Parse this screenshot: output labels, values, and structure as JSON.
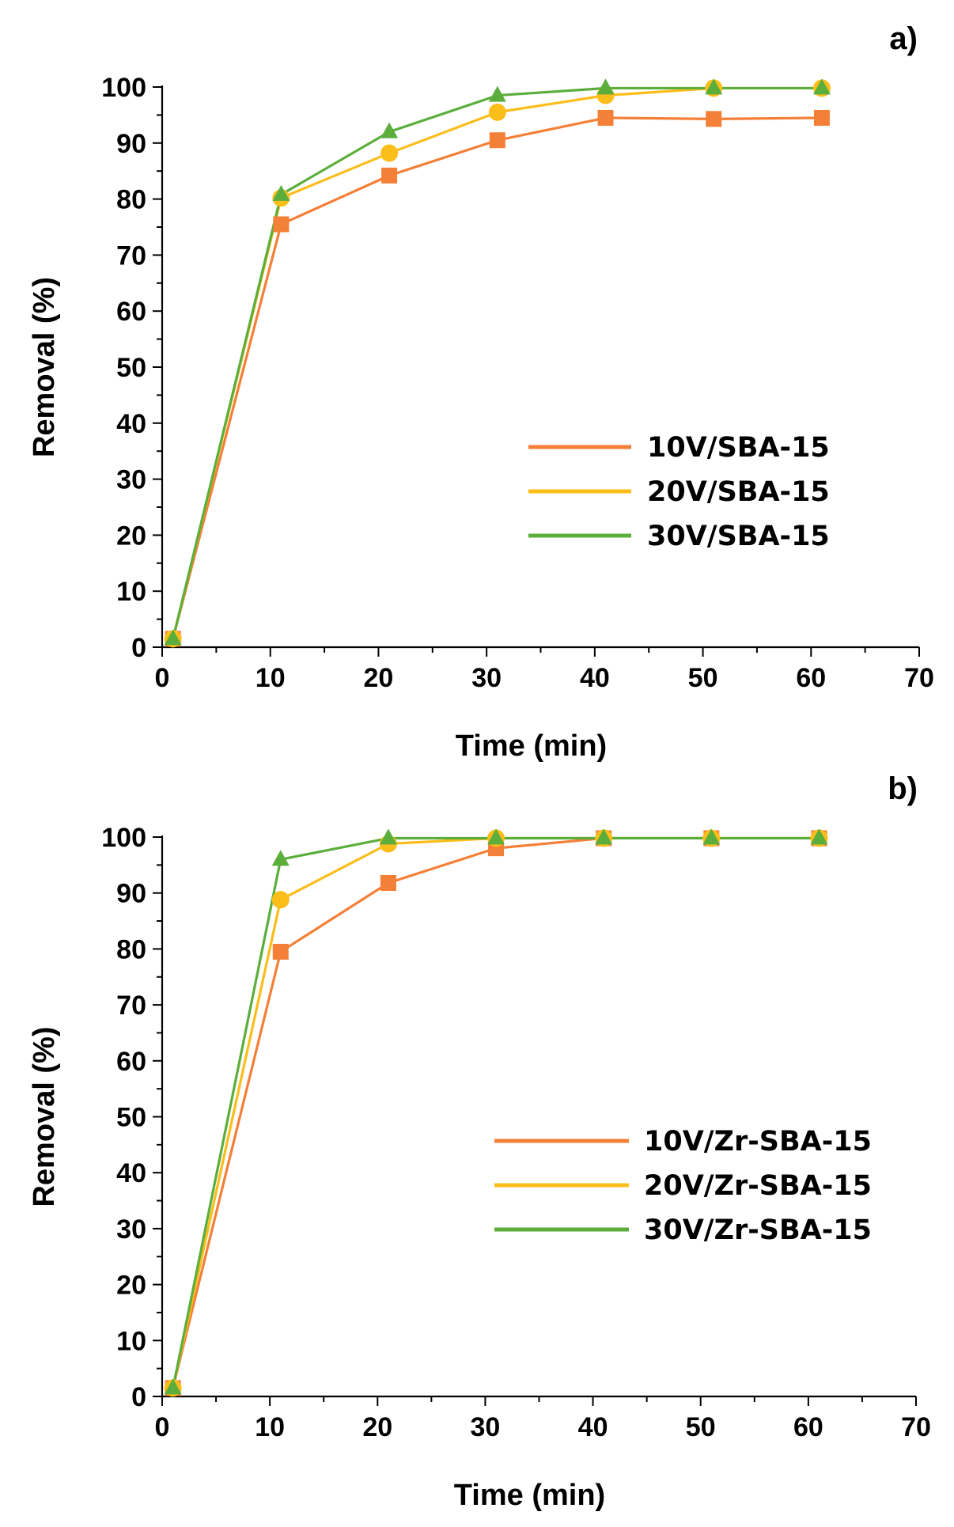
{
  "chart_data": [
    {
      "type": "line",
      "panel_label": "a)",
      "xlabel": "Time (min)",
      "ylabel": "Removal (%)",
      "xlim": [
        0,
        70
      ],
      "ylim": [
        0,
        100
      ],
      "x_ticks": [
        "0",
        "10",
        "20",
        "30",
        "40",
        "50",
        "60",
        "70"
      ],
      "y_ticks": [
        "0",
        "10",
        "20",
        "30",
        "40",
        "50",
        "60",
        "70",
        "80",
        "90",
        "100"
      ],
      "legend_position": "center-right",
      "x": [
        1,
        11,
        21,
        31,
        41,
        51,
        61
      ],
      "series": [
        {
          "name": "10V/SBA-15",
          "color": "#F47F37",
          "marker": "square",
          "values": [
            1.5,
            75.5,
            84.2,
            90.5,
            94.5,
            94.3,
            94.5
          ]
        },
        {
          "name": "20V/SBA-15",
          "color": "#FBBD1A",
          "marker": "circle",
          "values": [
            1.5,
            80.2,
            88.2,
            95.5,
            98.5,
            99.8,
            99.8
          ]
        },
        {
          "name": "30V/SBA-15",
          "color": "#5BAE3C",
          "marker": "triangle",
          "values": [
            1.5,
            80.8,
            92.0,
            98.5,
            99.8,
            99.8,
            99.8
          ]
        }
      ]
    },
    {
      "type": "line",
      "panel_label": "b)",
      "xlabel": "Time (min)",
      "ylabel": "Removal (%)",
      "xlim": [
        0,
        70
      ],
      "ylim": [
        0,
        100
      ],
      "x_ticks": [
        "0",
        "10",
        "20",
        "30",
        "40",
        "50",
        "60",
        "70"
      ],
      "y_ticks": [
        "0",
        "10",
        "20",
        "30",
        "40",
        "50",
        "60",
        "70",
        "80",
        "90",
        "100"
      ],
      "legend_position": "center-right",
      "x": [
        1,
        11,
        21,
        31,
        41,
        51,
        61
      ],
      "series": [
        {
          "name": "10V/Zr-SBA-15",
          "color": "#F47F37",
          "marker": "square",
          "values": [
            1.5,
            79.5,
            91.8,
            98.0,
            99.8,
            99.8,
            99.8
          ]
        },
        {
          "name": "20V/Zr-SBA-15",
          "color": "#FBBD1A",
          "marker": "circle",
          "values": [
            1.5,
            88.8,
            98.8,
            99.8,
            99.8,
            99.8,
            99.8
          ]
        },
        {
          "name": "30V/Zr-SBA-15",
          "color": "#5BAE3C",
          "marker": "triangle",
          "values": [
            1.5,
            96.0,
            99.8,
            99.8,
            99.8,
            99.8,
            99.8
          ]
        }
      ]
    }
  ]
}
